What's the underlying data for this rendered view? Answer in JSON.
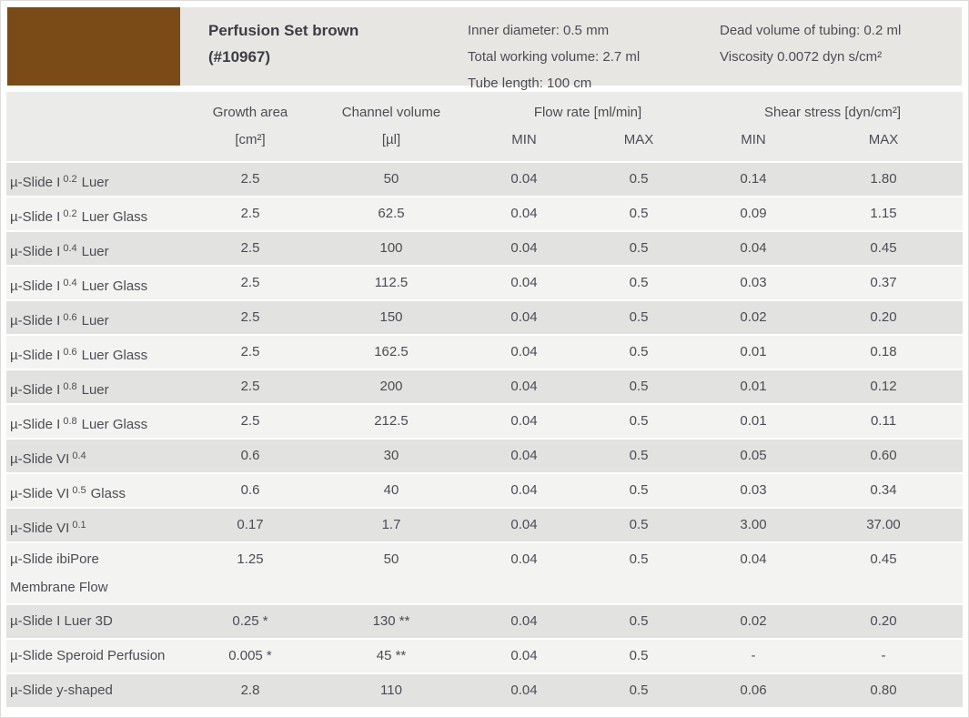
{
  "product_header": {
    "swatch_color": "#7a4a17",
    "title_line1": "Perfusion Set brown",
    "title_line2": "(#10967)",
    "specs_left": {
      "line1": "Inner diameter: 0.5 mm",
      "line2": "Total working volume: 2.7 ml",
      "line3": "Tube length: 100 cm"
    },
    "specs_right": {
      "line1": "Dead volume of tubing: 0.2 ml",
      "line2": "Viscosity 0.0072 dyn s/cm²"
    }
  },
  "table": {
    "header": {
      "growth_area_label": "Growth area",
      "growth_area_unit": "[cm²]",
      "channel_volume_label": "Channel volume",
      "channel_volume_unit": "[µl]",
      "flow_rate_label": "Flow rate [ml/min]",
      "shear_stress_label": "Shear stress [dyn/cm²]",
      "min_label": "MIN",
      "max_label": "MAX"
    },
    "rows": [
      {
        "name": {
          "base": "µ-Slide I",
          "sup": "0.2",
          "rest": "Luer"
        },
        "values": [
          "2.5",
          "50",
          "0.04",
          "0.5",
          "0.14",
          "1.80"
        ]
      },
      {
        "name": {
          "base": "µ-Slide I",
          "sup": "0.2",
          "rest": "Luer Glass"
        },
        "values": [
          "2.5",
          "62.5",
          "0.04",
          "0.5",
          "0.09",
          "1.15"
        ]
      },
      {
        "name": {
          "base": "µ-Slide I",
          "sup": "0.4",
          "rest": "Luer"
        },
        "values": [
          "2.5",
          "100",
          "0.04",
          "0.5",
          "0.04",
          "0.45"
        ]
      },
      {
        "name": {
          "base": "µ-Slide I",
          "sup": "0.4",
          "rest": "Luer Glass"
        },
        "values": [
          "2.5",
          "112.5",
          "0.04",
          "0.5",
          "0.03",
          "0.37"
        ]
      },
      {
        "name": {
          "base": "µ-Slide I",
          "sup": "0.6",
          "rest": "Luer"
        },
        "values": [
          "2.5",
          "150",
          "0.04",
          "0.5",
          "0.02",
          "0.20"
        ]
      },
      {
        "name": {
          "base": "µ-Slide I",
          "sup": "0.6",
          "rest": "Luer Glass"
        },
        "values": [
          "2.5",
          "162.5",
          "0.04",
          "0.5",
          "0.01",
          "0.18"
        ]
      },
      {
        "name": {
          "base": "µ-Slide I",
          "sup": "0.8",
          "rest": "Luer"
        },
        "values": [
          "2.5",
          "200",
          "0.04",
          "0.5",
          "0.01",
          "0.12"
        ]
      },
      {
        "name": {
          "base": "µ-Slide I",
          "sup": "0.8",
          "rest": "Luer Glass"
        },
        "values": [
          "2.5",
          "212.5",
          "0.04",
          "0.5",
          "0.01",
          "0.11"
        ]
      },
      {
        "name": {
          "base": "µ-Slide VI",
          "sup": "0.4",
          "rest": ""
        },
        "values": [
          "0.6",
          "30",
          "0.04",
          "0.5",
          "0.05",
          "0.60"
        ]
      },
      {
        "name": {
          "base": "µ-Slide VI",
          "sup": "0.5",
          "rest": "Glass"
        },
        "values": [
          "0.6",
          "40",
          "0.04",
          "0.5",
          "0.03",
          "0.34"
        ]
      },
      {
        "name": {
          "base": "µ-Slide VI",
          "sup": "0.1",
          "rest": ""
        },
        "values": [
          "0.17",
          "1.7",
          "0.04",
          "0.5",
          "3.00",
          "37.00"
        ]
      },
      {
        "name": {
          "base": "µ-Slide ibiPore",
          "line2": "Membrane Flow"
        },
        "values": [
          "1.25",
          "50",
          "0.04",
          "0.5",
          "0.04",
          "0.45"
        ]
      },
      {
        "name": {
          "base": "µ-Slide I Luer 3D"
        },
        "values": [
          "0.25 *",
          "130 **",
          "0.04",
          "0.5",
          "0.02",
          "0.20"
        ]
      },
      {
        "name": {
          "base": "µ-Slide Speroid Perfusion"
        },
        "values": [
          "0.005 *",
          "45 **",
          "0.04",
          "0.5",
          "-",
          "-"
        ]
      },
      {
        "name": {
          "base": "µ-Slide y-shaped"
        },
        "values": [
          "2.8",
          "110",
          "0.04",
          "0.5",
          "0.06",
          "0.80"
        ]
      }
    ]
  }
}
